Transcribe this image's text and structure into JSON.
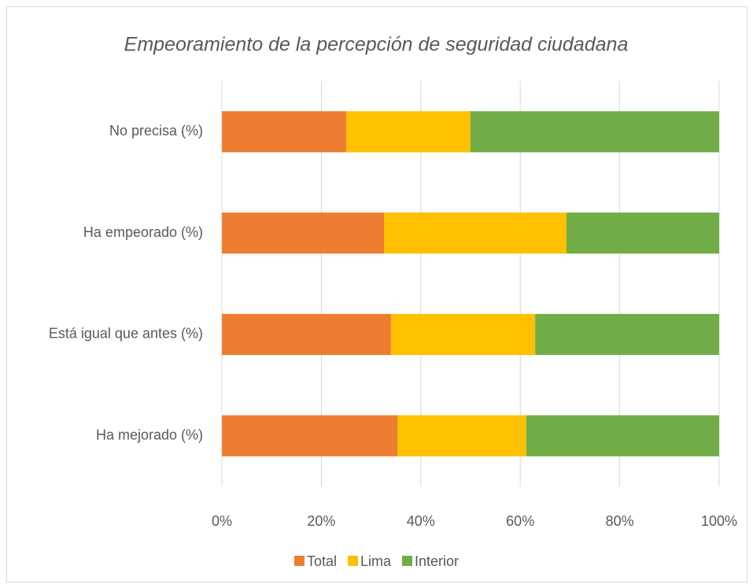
{
  "chart_data": {
    "type": "stacked_bar_horizontal",
    "title": "Empeoramiento de la percepción de seguridad ciudadana",
    "categories": [
      "Ha mejorado (%)",
      "Está igual que antes (%)",
      "Ha empeorado (%)",
      "No precisa (%)"
    ],
    "series": [
      {
        "name": "Total",
        "color": "#ed7d31",
        "values": [
          35.3,
          34.0,
          32.6,
          25.0
        ]
      },
      {
        "name": "Lima",
        "color": "#ffc000",
        "values": [
          25.9,
          29.0,
          36.7,
          25.0
        ]
      },
      {
        "name": "Interior",
        "color": "#70ad47",
        "values": [
          38.8,
          37.0,
          30.7,
          50.0
        ]
      }
    ],
    "xlim": [
      0,
      100
    ],
    "xticks": [
      {
        "value": 0,
        "label": "0%"
      },
      {
        "value": 20,
        "label": "20%"
      },
      {
        "value": 40,
        "label": "40%"
      },
      {
        "value": 60,
        "label": "60%"
      },
      {
        "value": 80,
        "label": "80%"
      },
      {
        "value": 100,
        "label": "100%"
      }
    ],
    "grid": true,
    "legend": "bottom"
  }
}
